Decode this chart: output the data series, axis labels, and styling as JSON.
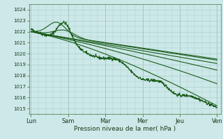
{
  "background_color": "#cde8e8",
  "grid_color": "#aacece",
  "line_color": "#1a5c1a",
  "title": "Pression niveau de la mer( hPa )",
  "ylim": [
    1014.5,
    1024.5
  ],
  "yticks": [
    1015,
    1016,
    1017,
    1018,
    1019,
    1020,
    1021,
    1022,
    1023,
    1024
  ],
  "xtick_labels": [
    "Lun",
    "Sam",
    "Mar",
    "Mer",
    "Jeu",
    "Ven"
  ],
  "xtick_positions": [
    0,
    1,
    2,
    3,
    4,
    5
  ]
}
